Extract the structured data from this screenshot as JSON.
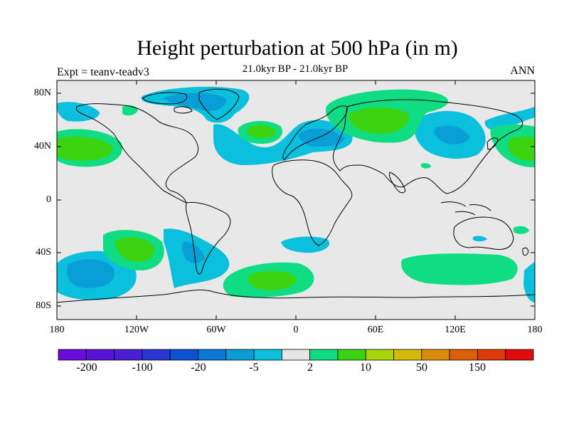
{
  "title": "Height perturbation at 500 hPa (in m)",
  "subtitle": "21.0kyr BP - 21.0kyr BP",
  "experiment_label": "Expt = teanv-teadv3",
  "period_label": "ANN",
  "lat_ticks": [
    "80N",
    "40N",
    "0",
    "40S",
    "80S"
  ],
  "lon_ticks": [
    "180",
    "120W",
    "60W",
    "0",
    "60E",
    "120E",
    "180"
  ],
  "colorbar": {
    "colors": [
      "#6a0cd8",
      "#5a12d4",
      "#4a1fd4",
      "#2a36d2",
      "#0a52d0",
      "#0a78d4",
      "#0a9ed6",
      "#0ac0dc",
      "#e6e6e6",
      "#10dc84",
      "#3cd410",
      "#a8d40a",
      "#d4b80a",
      "#dc8c0a",
      "#dc600a",
      "#dc3a0a",
      "#e00a0a"
    ],
    "labels": [
      "-200",
      "-100",
      "-20",
      "-5",
      "2",
      "10",
      "50",
      "150"
    ]
  },
  "colors": {
    "background": "#e8e8e8",
    "neg_light": "#0ac0dc",
    "neg_mid": "#0a9ed6",
    "pos_light": "#10dc84",
    "pos_mid": "#3cd410"
  }
}
